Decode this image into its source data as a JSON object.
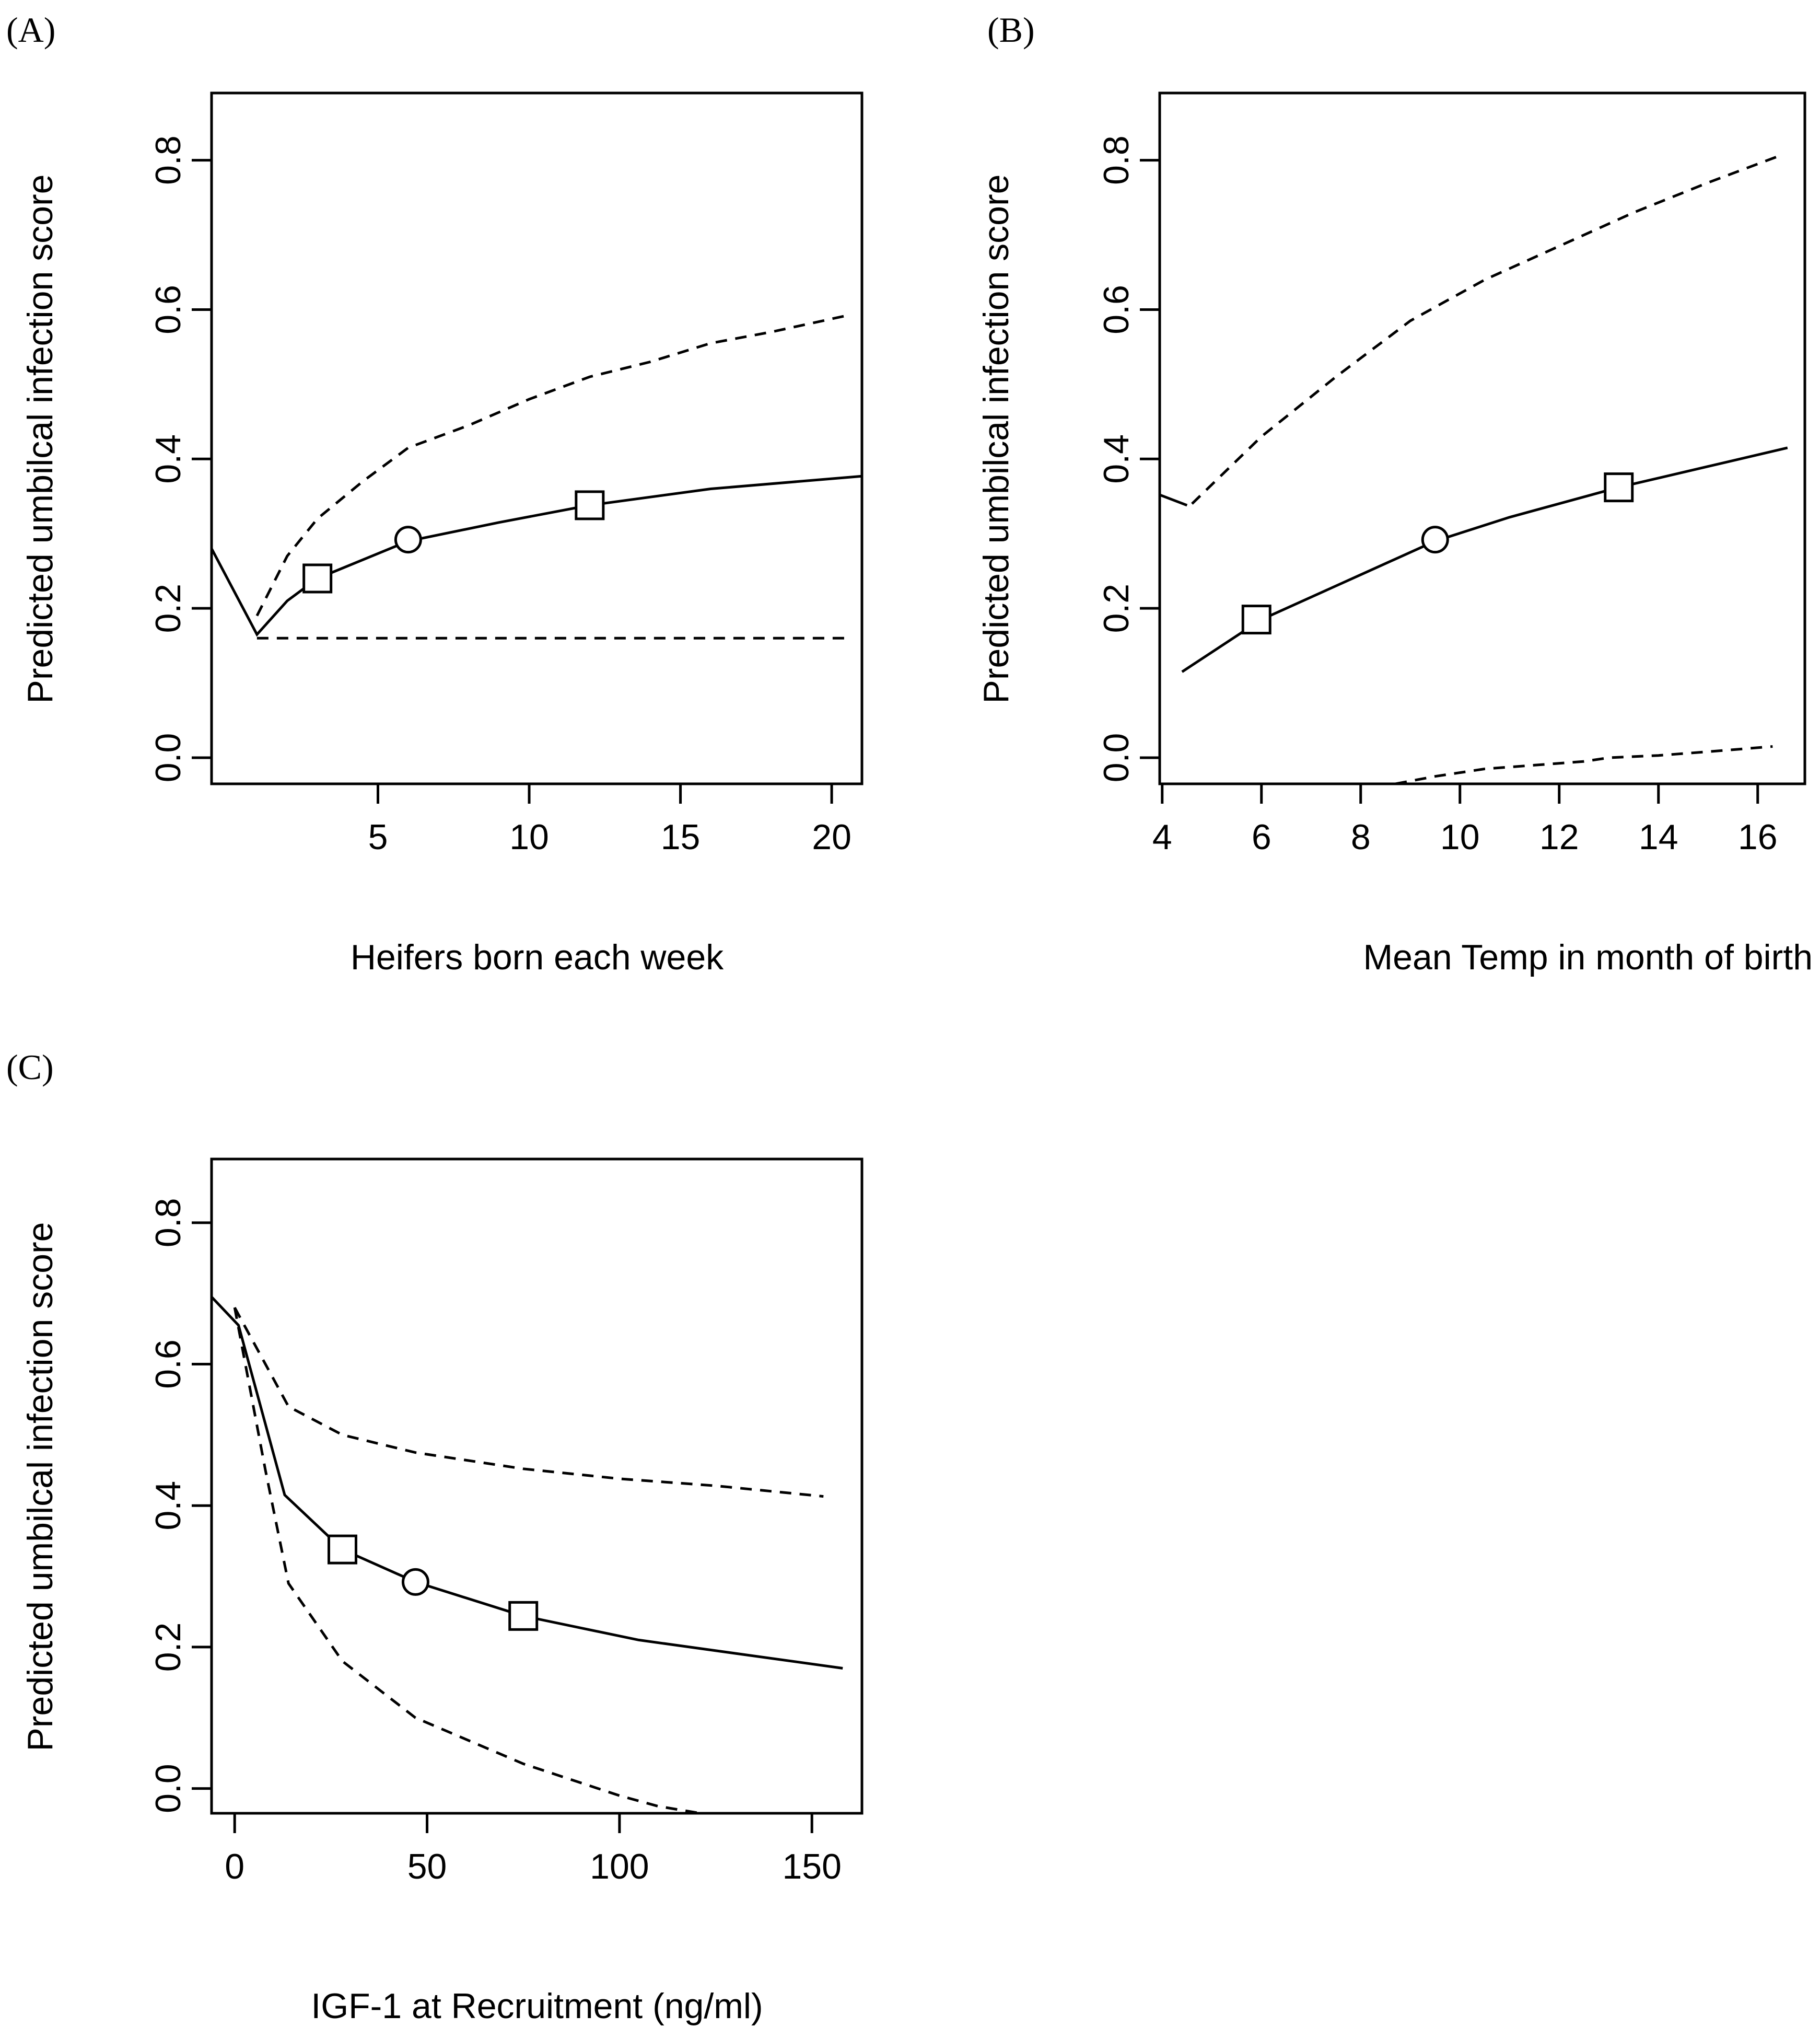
{
  "chart_data": [
    {
      "panel": "(A)",
      "type": "line",
      "xlabel": "Heifers born each week",
      "ylabel": "Predicted umbilcal infection score",
      "xlim": [
        -0.5,
        21
      ],
      "ylim": [
        -0.035,
        0.89
      ],
      "xticks": [
        5,
        10,
        15,
        20
      ],
      "yticks": [
        0.0,
        0.2,
        0.4,
        0.6,
        0.8
      ],
      "xtick_labels": [
        "5",
        "10",
        "15",
        "20"
      ],
      "ytick_labels": [
        "0.0",
        "0.2",
        "0.4",
        "0.6",
        "0.8"
      ],
      "series": [
        {
          "style": "solid",
          "x": [
            -0.5,
            1.0,
            2.0,
            3.0,
            6.0,
            9.0,
            12.0,
            16.0,
            21.0
          ],
          "y": [
            0.28,
            0.165,
            0.21,
            0.24,
            0.29,
            0.315,
            0.338,
            0.36,
            0.377
          ]
        },
        {
          "style": "dashed",
          "x": [
            1.0,
            2.0,
            3.0,
            4.5,
            6.0,
            8.0,
            10.0,
            12.0,
            14.0,
            16.0,
            18.0,
            20.5
          ],
          "y": [
            0.19,
            0.27,
            0.32,
            0.37,
            0.415,
            0.445,
            0.48,
            0.51,
            0.53,
            0.555,
            0.57,
            0.592
          ]
        },
        {
          "style": "dashed",
          "x": [
            1.0,
            20.5
          ],
          "y": [
            0.16,
            0.16
          ]
        }
      ],
      "markers": [
        {
          "shape": "square",
          "x": 3.0,
          "y": 0.24
        },
        {
          "shape": "circle",
          "x": 6.0,
          "y": 0.292
        },
        {
          "shape": "square",
          "x": 12.0,
          "y": 0.338
        }
      ]
    },
    {
      "panel": "(B)",
      "type": "line",
      "xlabel": "Mean Temp in month of birth (°C)",
      "ylabel": "Predicted umbilcal infection score",
      "xlim": [
        3.95,
        16.95
      ],
      "ylim": [
        -0.035,
        0.89
      ],
      "xticks": [
        4,
        6,
        8,
        10,
        12,
        14,
        16
      ],
      "yticks": [
        0.0,
        0.2,
        0.4,
        0.6,
        0.8
      ],
      "xtick_labels": [
        "4",
        "6",
        "8",
        "10",
        "12",
        "14",
        "16"
      ],
      "ytick_labels": [
        "0.0",
        "0.2",
        "0.4",
        "0.6",
        "0.8"
      ],
      "series": [
        {
          "style": "solid",
          "x": [
            4.4,
            6.0,
            8.0,
            9.5,
            11.0,
            13.2,
            15.0,
            16.6
          ],
          "y": [
            0.115,
            0.185,
            0.245,
            0.29,
            0.322,
            0.362,
            0.39,
            0.415
          ]
        },
        {
          "style": "solid",
          "x": [
            3.95,
            4.5
          ],
          "y": [
            0.352,
            0.338
          ]
        },
        {
          "style": "dashed",
          "x": [
            4.6,
            6.0,
            7.5,
            9.0,
            10.5,
            12.0,
            13.5,
            15.0,
            16.4
          ],
          "y": [
            0.34,
            0.43,
            0.51,
            0.585,
            0.64,
            0.685,
            0.73,
            0.77,
            0.805
          ]
        },
        {
          "style": "dashed",
          "x": [
            8.7,
            9.5,
            10.5,
            11.5,
            12.5,
            13.0,
            14.0,
            15.0,
            16.3
          ],
          "y": [
            -0.035,
            -0.025,
            -0.015,
            -0.01,
            -0.005,
            0.0,
            0.003,
            0.008,
            0.015
          ]
        }
      ],
      "markers": [
        {
          "shape": "square",
          "x": 5.9,
          "y": 0.185
        },
        {
          "shape": "circle",
          "x": 9.5,
          "y": 0.292
        },
        {
          "shape": "square",
          "x": 13.2,
          "y": 0.362
        }
      ]
    },
    {
      "panel": "(C)",
      "type": "line",
      "xlabel": "IGF-1 at Recruitment (ng/ml)",
      "ylabel": "Predicted umbilcal infection score",
      "xlim": [
        -6,
        163
      ],
      "ylim": [
        -0.035,
        0.89
      ],
      "xticks": [
        0,
        50,
        100,
        150
      ],
      "yticks": [
        0.0,
        0.2,
        0.4,
        0.6,
        0.8
      ],
      "xtick_labels": [
        "0",
        "50",
        "100",
        "150"
      ],
      "ytick_labels": [
        "0.0",
        "0.2",
        "0.4",
        "0.6",
        "0.8"
      ],
      "series": [
        {
          "style": "solid",
          "x": [
            -6,
            1,
            13,
            28,
            47,
            75,
            105,
            158
          ],
          "y": [
            0.695,
            0.655,
            0.415,
            0.338,
            0.292,
            0.244,
            0.21,
            0.17
          ]
        },
        {
          "style": "dashed",
          "x": [
            0,
            8,
            14,
            28,
            47,
            75,
            100,
            125,
            153
          ],
          "y": [
            0.68,
            0.6,
            0.54,
            0.5,
            0.475,
            0.452,
            0.438,
            0.428,
            0.413
          ]
        },
        {
          "style": "dashed",
          "x": [
            0,
            8,
            14,
            28,
            47,
            75,
            100,
            110,
            121
          ],
          "y": [
            0.68,
            0.45,
            0.29,
            0.18,
            0.1,
            0.035,
            -0.01,
            -0.025,
            -0.035
          ]
        }
      ],
      "markers": [
        {
          "shape": "square",
          "x": 28,
          "y": 0.338
        },
        {
          "shape": "circle",
          "x": 47,
          "y": 0.292
        },
        {
          "shape": "square",
          "x": 75,
          "y": 0.244
        }
      ]
    }
  ]
}
